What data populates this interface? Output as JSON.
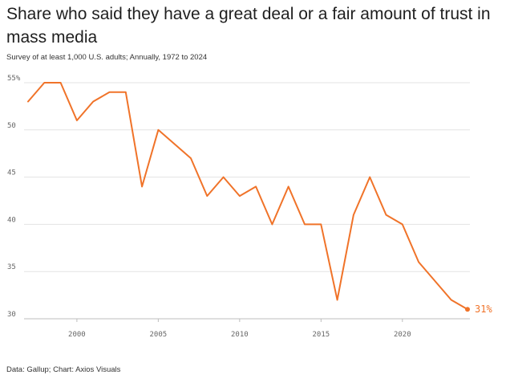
{
  "title": "Share who said they have a great deal or a fair amount of trust in mass media",
  "subtitle": "Survey of at least 1,000 U.S. adults; Annually, 1972 to 2024",
  "source": "Data: Gallup; Chart: Axios Visuals",
  "end_label": "31%",
  "colors": {
    "line": "#f07329",
    "grid": "#e3e3e3",
    "text": "#666666"
  },
  "chart_data": {
    "type": "line",
    "title": "Share who said they have a great deal or a fair amount of trust in mass media",
    "subtitle": "Survey of at least 1,000 U.S. adults; Annually, 1972 to 2024",
    "xlabel": "",
    "ylabel": "",
    "x": [
      1997,
      1998,
      1999,
      2000,
      2001,
      2002,
      2003,
      2004,
      2005,
      2007,
      2008,
      2009,
      2010,
      2011,
      2012,
      2013,
      2014,
      2015,
      2016,
      2017,
      2018,
      2019,
      2020,
      2021,
      2023,
      2024
    ],
    "series": [
      {
        "values": [
          53,
          55,
          55,
          51,
          53,
          54,
          54,
          44,
          50,
          47,
          43,
          45,
          43,
          44,
          40,
          44,
          40,
          40,
          32,
          41,
          45,
          41,
          40,
          36,
          32,
          31
        ]
      }
    ],
    "xlim": [
      1997,
      2024
    ],
    "ylim": [
      30,
      55
    ],
    "x_ticks": [
      2000,
      2005,
      2010,
      2015,
      2020
    ],
    "y_ticks": [
      30,
      35,
      40,
      45,
      50,
      55
    ],
    "y_tick_labels": [
      "30",
      "35",
      "40",
      "45",
      "50",
      "55%"
    ],
    "grid": true,
    "legend": "none"
  }
}
